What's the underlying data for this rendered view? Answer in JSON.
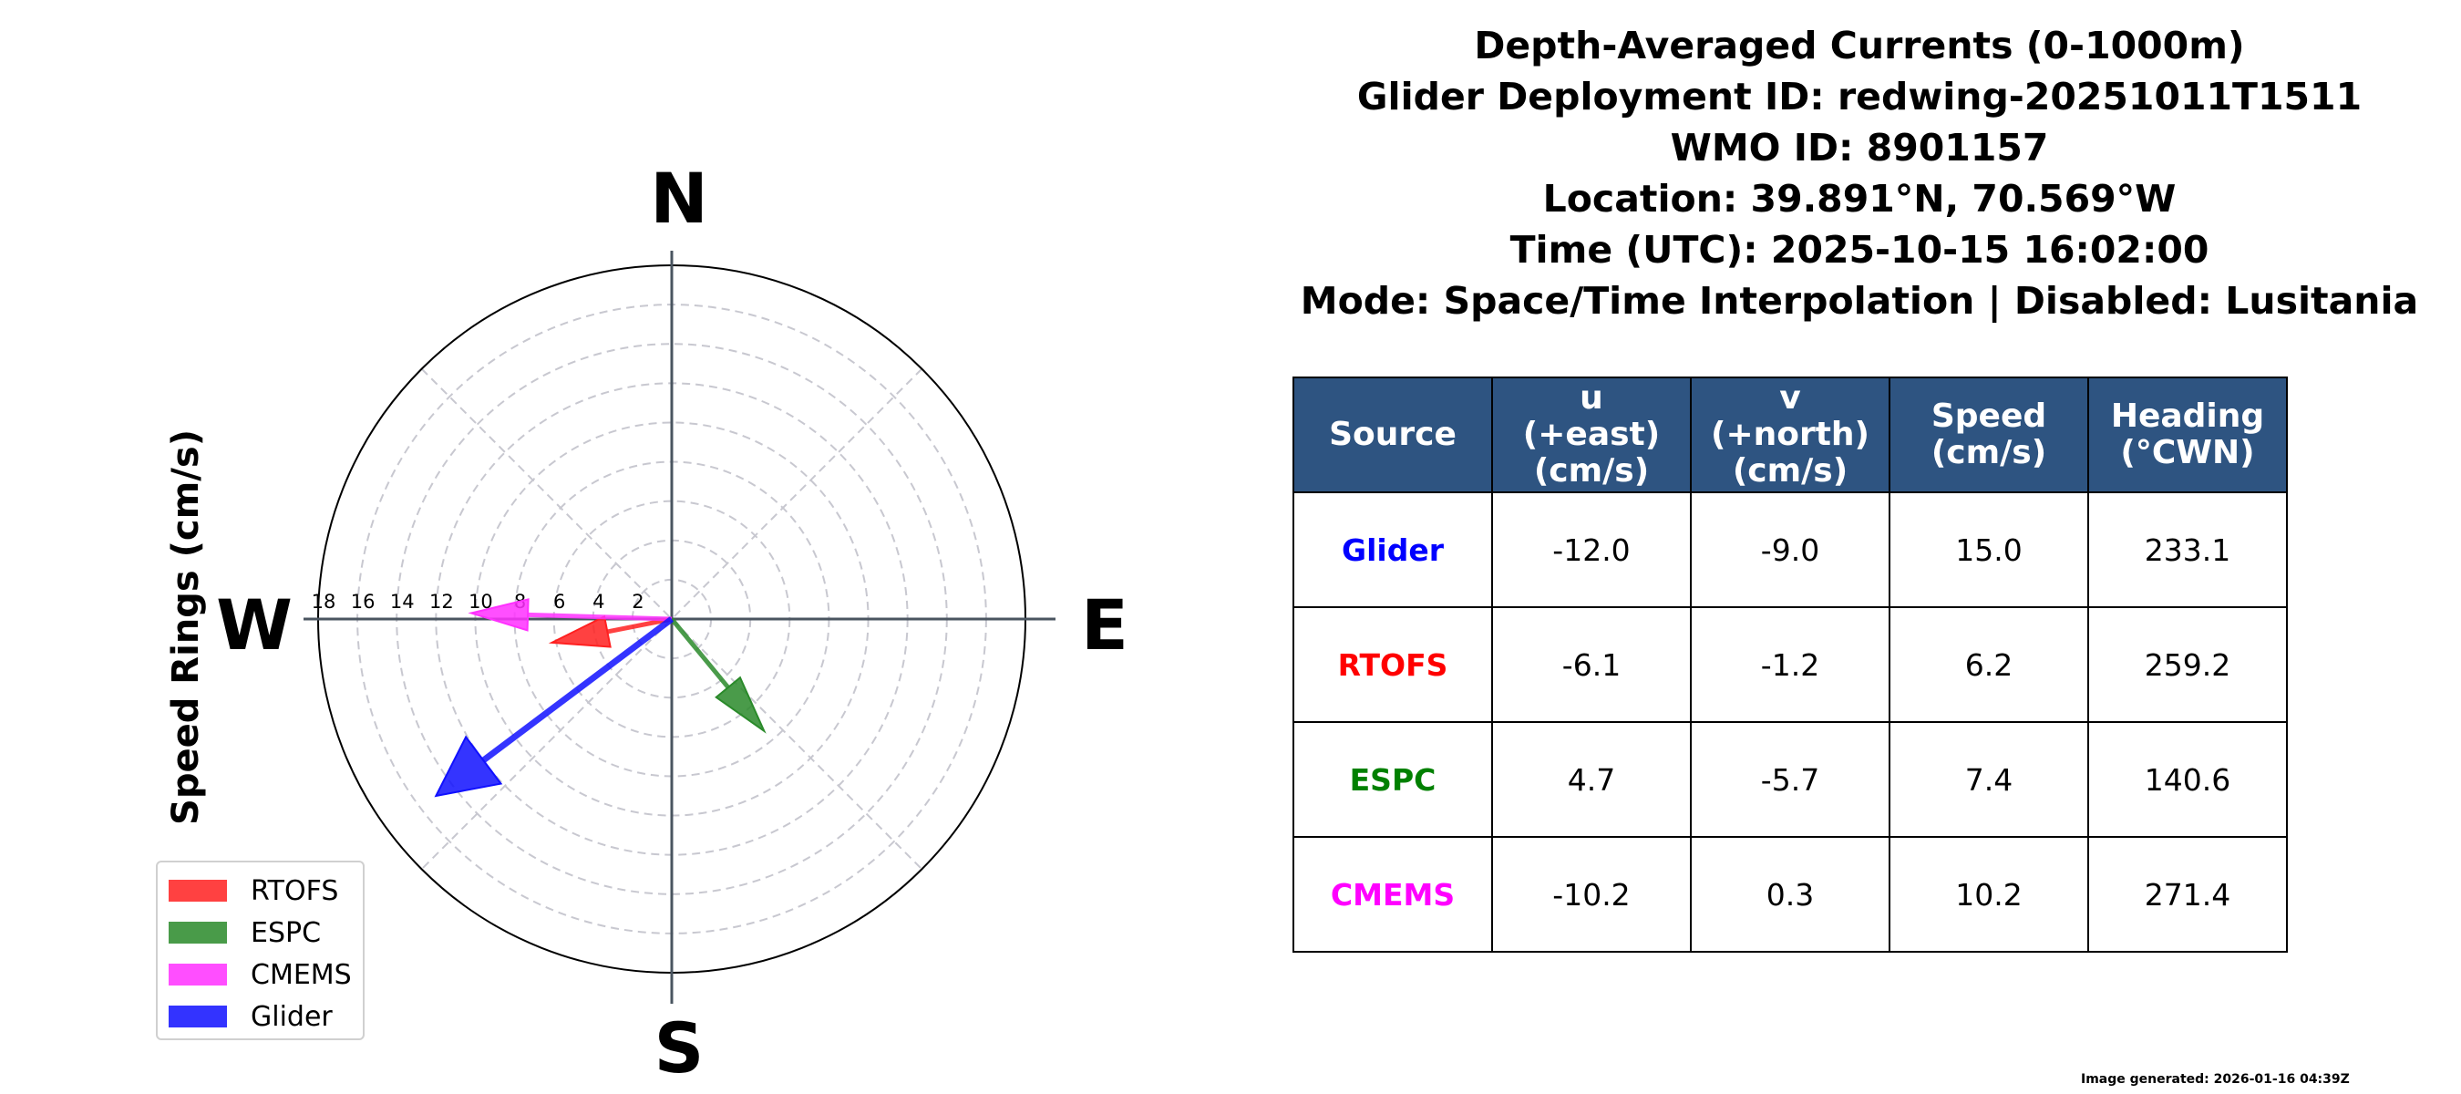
{
  "chart_data": {
    "type": "polar-vector",
    "title": "Depth-Averaged Currents (0-1000m)",
    "ylabel": "Speed Rings (cm/s)",
    "rmax": 18,
    "ring_ticks": [
      "2",
      "4",
      "6",
      "8",
      "10",
      "12",
      "14",
      "16",
      "18"
    ],
    "ring_values": [
      2,
      4,
      6,
      8,
      10,
      12,
      14,
      16,
      18
    ],
    "cardinals": {
      "n": "N",
      "e": "E",
      "s": "S",
      "w": "W"
    },
    "legend_position": "lower-left",
    "series": [
      {
        "name": "RTOFS",
        "u": -6.1,
        "v": -1.2,
        "color": "#ff2020"
      },
      {
        "name": "ESPC",
        "u": 4.7,
        "v": -5.7,
        "color": "#2a8a2a"
      },
      {
        "name": "CMEMS",
        "u": -10.2,
        "v": 0.3,
        "color": "#ff30ff"
      },
      {
        "name": "Glider",
        "u": -12.0,
        "v": -9.0,
        "color": "#1010ff"
      }
    ]
  },
  "title_lines": [
    "Depth-Averaged Currents (0-1000m)",
    "Glider Deployment ID: redwing-20251011T1511",
    "WMO ID: 8901157",
    "Location: 39.891°N, 70.569°W",
    "Time (UTC): 2025-10-15 16:02:00",
    "Mode: Space/Time Interpolation | Disabled: Lusitania"
  ],
  "table": {
    "headers": [
      "Source",
      "u\n(+east)\n(cm/s)",
      "v\n(+north)\n(cm/s)",
      "Speed\n(cm/s)",
      "Heading\n(°CWN)"
    ],
    "rows": [
      {
        "source": "Glider",
        "color": "#0000ff",
        "u": "-12.0",
        "v": "-9.0",
        "speed": "15.0",
        "heading": "233.1"
      },
      {
        "source": "RTOFS",
        "color": "#ff0000",
        "u": "-6.1",
        "v": "-1.2",
        "speed": "6.2",
        "heading": "259.2"
      },
      {
        "source": "ESPC",
        "color": "#008000",
        "u": "4.7",
        "v": "-5.7",
        "speed": "7.4",
        "heading": "140.6"
      },
      {
        "source": "CMEMS",
        "color": "#ff00ff",
        "u": "-10.2",
        "v": "0.3",
        "speed": "10.2",
        "heading": "271.4"
      }
    ]
  },
  "footer": "Image generated: 2026-01-16 04:39Z"
}
